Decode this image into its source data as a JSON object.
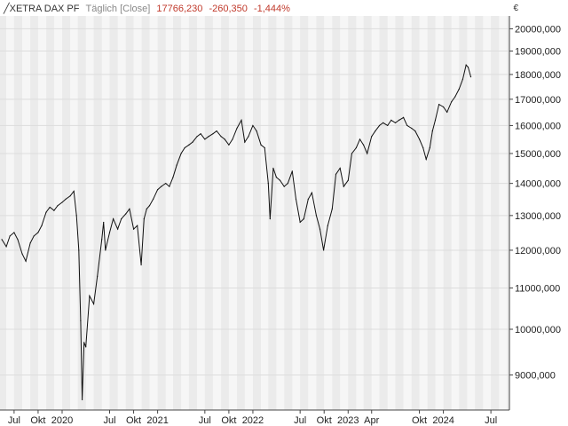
{
  "header": {
    "symbol": "╱XETRA DAX PF",
    "frequency": "Täglich [Close]",
    "last": "17766,230",
    "change": "-260,350",
    "change_pct": "-1,444%"
  },
  "currency": "€",
  "colors": {
    "line": "#111111",
    "band_light": "#f6f6f6",
    "band_dark": "#ebebeb",
    "grid": "#dddddd",
    "down": "#c0392b"
  },
  "chart_data": {
    "type": "line",
    "series": [
      {
        "name": "XETRA DAX PF",
        "x": [
          "2019-05-15",
          "2019-06-01",
          "2019-06-15",
          "2019-07-01",
          "2019-07-15",
          "2019-08-01",
          "2019-08-15",
          "2019-09-01",
          "2019-09-15",
          "2019-10-01",
          "2019-10-15",
          "2019-11-01",
          "2019-11-15",
          "2019-12-01",
          "2019-12-15",
          "2020-01-01",
          "2020-01-15",
          "2020-02-01",
          "2020-02-15",
          "2020-02-25",
          "2020-03-05",
          "2020-03-12",
          "2020-03-18",
          "2020-03-25",
          "2020-04-01",
          "2020-04-15",
          "2020-05-01",
          "2020-05-15",
          "2020-06-01",
          "2020-06-08",
          "2020-06-15",
          "2020-07-01",
          "2020-07-15",
          "2020-08-01",
          "2020-08-15",
          "2020-09-01",
          "2020-09-15",
          "2020-10-01",
          "2020-10-15",
          "2020-10-30",
          "2020-11-10",
          "2020-11-20",
          "2020-12-01",
          "2020-12-15",
          "2021-01-01",
          "2021-01-15",
          "2021-02-01",
          "2021-02-15",
          "2021-03-01",
          "2021-03-15",
          "2021-04-01",
          "2021-04-15",
          "2021-05-01",
          "2021-05-15",
          "2021-06-01",
          "2021-06-15",
          "2021-07-01",
          "2021-07-15",
          "2021-08-01",
          "2021-08-15",
          "2021-09-01",
          "2021-09-15",
          "2021-10-01",
          "2021-10-15",
          "2021-11-01",
          "2021-11-18",
          "2021-12-01",
          "2021-12-15",
          "2022-01-01",
          "2022-01-15",
          "2022-02-01",
          "2022-02-15",
          "2022-03-01",
          "2022-03-08",
          "2022-03-20",
          "2022-04-01",
          "2022-04-15",
          "2022-05-01",
          "2022-05-15",
          "2022-06-01",
          "2022-06-15",
          "2022-07-01",
          "2022-07-15",
          "2022-08-01",
          "2022-08-15",
          "2022-09-01",
          "2022-09-15",
          "2022-09-29",
          "2022-10-15",
          "2022-11-01",
          "2022-11-15",
          "2022-12-01",
          "2022-12-15",
          "2023-01-01",
          "2023-01-15",
          "2023-02-01",
          "2023-02-15",
          "2023-03-01",
          "2023-03-15",
          "2023-04-01",
          "2023-04-15",
          "2023-05-01",
          "2023-05-15",
          "2023-06-01",
          "2023-06-15",
          "2023-07-01",
          "2023-07-15",
          "2023-08-01",
          "2023-08-15",
          "2023-09-01",
          "2023-09-15",
          "2023-10-01",
          "2023-10-15",
          "2023-10-27",
          "2023-11-10",
          "2023-11-20",
          "2023-12-01",
          "2023-12-15",
          "2024-01-01",
          "2024-01-15",
          "2024-02-01",
          "2024-02-15",
          "2024-03-01",
          "2024-03-15",
          "2024-03-28",
          "2024-04-05",
          "2024-04-15"
        ],
        "y": [
          12300,
          12100,
          12400,
          12500,
          12300,
          11900,
          11700,
          12200,
          12400,
          12500,
          12700,
          13100,
          13250,
          13150,
          13300,
          13400,
          13500,
          13600,
          13750,
          13000,
          12000,
          10200,
          8500,
          9700,
          9600,
          10800,
          10600,
          11300,
          12300,
          12800,
          12000,
          12500,
          12900,
          12600,
          12900,
          13050,
          13200,
          12600,
          12700,
          11600,
          12900,
          13200,
          13300,
          13500,
          13800,
          13900,
          14000,
          13900,
          14200,
          14600,
          15000,
          15200,
          15300,
          15400,
          15600,
          15700,
          15500,
          15600,
          15700,
          15800,
          15600,
          15500,
          15300,
          15500,
          15900,
          16200,
          15400,
          15600,
          16000,
          15800,
          15300,
          15200,
          14000,
          12900,
          14500,
          14200,
          14100,
          13900,
          14000,
          14400,
          13500,
          12800,
          12900,
          13500,
          13700,
          13000,
          12600,
          12000,
          12700,
          13200,
          14300,
          14500,
          13900,
          14100,
          15000,
          15200,
          15500,
          15300,
          15000,
          15600,
          15800,
          16000,
          16100,
          16000,
          16200,
          16100,
          16200,
          16300,
          16000,
          15900,
          15800,
          15500,
          15200,
          14800,
          15200,
          15800,
          16200,
          16800,
          16700,
          16500,
          16900,
          17100,
          17400,
          17800,
          18400,
          18300,
          17900
        ]
      }
    ],
    "y_ticks": [
      "9000,000",
      "10000,000",
      "11000,000",
      "12000,000",
      "13000,000",
      "14000,000",
      "15000,000",
      "16000,000",
      "17000,000",
      "18000,000",
      "19000,000",
      "20000,000"
    ],
    "y_tick_values": [
      9000,
      10000,
      11000,
      12000,
      13000,
      14000,
      15000,
      16000,
      17000,
      18000,
      19000,
      20000
    ],
    "y_scale": "log",
    "ylim": [
      8300,
      20600
    ],
    "x_ticks": [
      {
        "label": "Jul",
        "date": "2019-07-01"
      },
      {
        "label": "Okt",
        "date": "2019-10-01"
      },
      {
        "label": "2020",
        "date": "2020-01-01"
      },
      {
        "label": "Jul",
        "date": "2020-07-01"
      },
      {
        "label": "Okt",
        "date": "2020-10-01"
      },
      {
        "label": "2021",
        "date": "2021-01-01"
      },
      {
        "label": "Jul",
        "date": "2021-07-01"
      },
      {
        "label": "Okt",
        "date": "2021-10-01"
      },
      {
        "label": "2022",
        "date": "2022-01-01"
      },
      {
        "label": "Jul",
        "date": "2022-07-01"
      },
      {
        "label": "Okt",
        "date": "2022-10-01"
      },
      {
        "label": "2023",
        "date": "2023-01-01"
      },
      {
        "label": "Apr",
        "date": "2023-04-01"
      },
      {
        "label": "Okt",
        "date": "2023-10-01"
      },
      {
        "label": "2024",
        "date": "2024-01-01"
      },
      {
        "label": "Jul",
        "date": "2024-07-01"
      }
    ],
    "xlim": [
      "2019-05-08",
      "2024-09-10"
    ],
    "grid": true,
    "legend": "top-left"
  }
}
